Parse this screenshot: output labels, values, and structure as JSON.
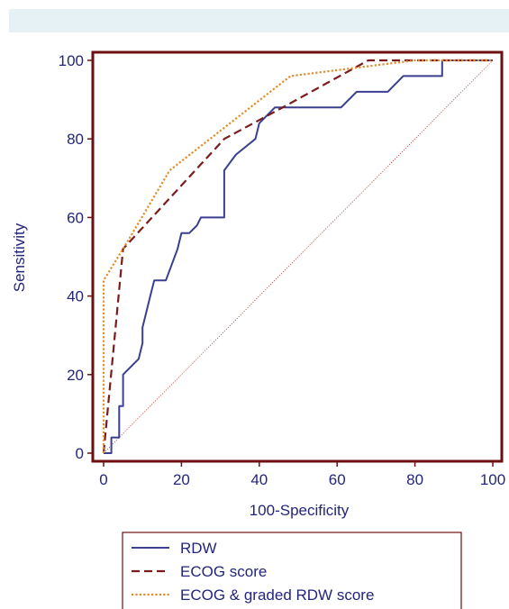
{
  "chart_data": {
    "type": "line",
    "title": "",
    "xlabel": "100-Specificity",
    "ylabel": "Sensitivity",
    "xlim": [
      0,
      100
    ],
    "ylim": [
      0,
      100
    ],
    "x_ticks": [
      0,
      20,
      40,
      60,
      80,
      100
    ],
    "y_ticks": [
      0,
      20,
      40,
      60,
      80,
      100
    ],
    "grid": false,
    "legend_position": "bottom",
    "colors": {
      "frame": "#6b0f10",
      "axis_text": "#22257a",
      "background": "#ffffff",
      "diagonal": "#c0392b"
    },
    "series": [
      {
        "name": "RDW",
        "color": "#3a3f8f",
        "dash": "solid",
        "points": [
          [
            0,
            0
          ],
          [
            2,
            0
          ],
          [
            2,
            4
          ],
          [
            4,
            4
          ],
          [
            4,
            12
          ],
          [
            5,
            12
          ],
          [
            5,
            20
          ],
          [
            9,
            24
          ],
          [
            10,
            28
          ],
          [
            10,
            32
          ],
          [
            12,
            40
          ],
          [
            13,
            44
          ],
          [
            16,
            44
          ],
          [
            19,
            52
          ],
          [
            20,
            56
          ],
          [
            22,
            56
          ],
          [
            24,
            58
          ],
          [
            25,
            60
          ],
          [
            31,
            60
          ],
          [
            31,
            72
          ],
          [
            34,
            76
          ],
          [
            39,
            80
          ],
          [
            40,
            84
          ],
          [
            44,
            88
          ],
          [
            47,
            88
          ],
          [
            61,
            88
          ],
          [
            65,
            92
          ],
          [
            73,
            92
          ],
          [
            77,
            96
          ],
          [
            87,
            96
          ],
          [
            87,
            100
          ],
          [
            100,
            100
          ]
        ]
      },
      {
        "name": "ECOG score",
        "color": "#7a1c1c",
        "dash": "dashed",
        "points": [
          [
            0,
            0
          ],
          [
            5,
            52
          ],
          [
            31,
            80
          ],
          [
            46,
            88
          ],
          [
            68,
            100
          ],
          [
            100,
            100
          ]
        ]
      },
      {
        "name": "ECOG & graded RDW score",
        "color": "#e08c2a",
        "dash": "dotted",
        "points": [
          [
            0,
            0
          ],
          [
            0,
            44
          ],
          [
            5,
            52
          ],
          [
            17,
            72
          ],
          [
            48,
            96
          ],
          [
            80,
            100
          ],
          [
            100,
            100
          ]
        ]
      }
    ],
    "reference_line": {
      "points": [
        [
          0,
          0
        ],
        [
          100,
          100
        ]
      ]
    }
  }
}
